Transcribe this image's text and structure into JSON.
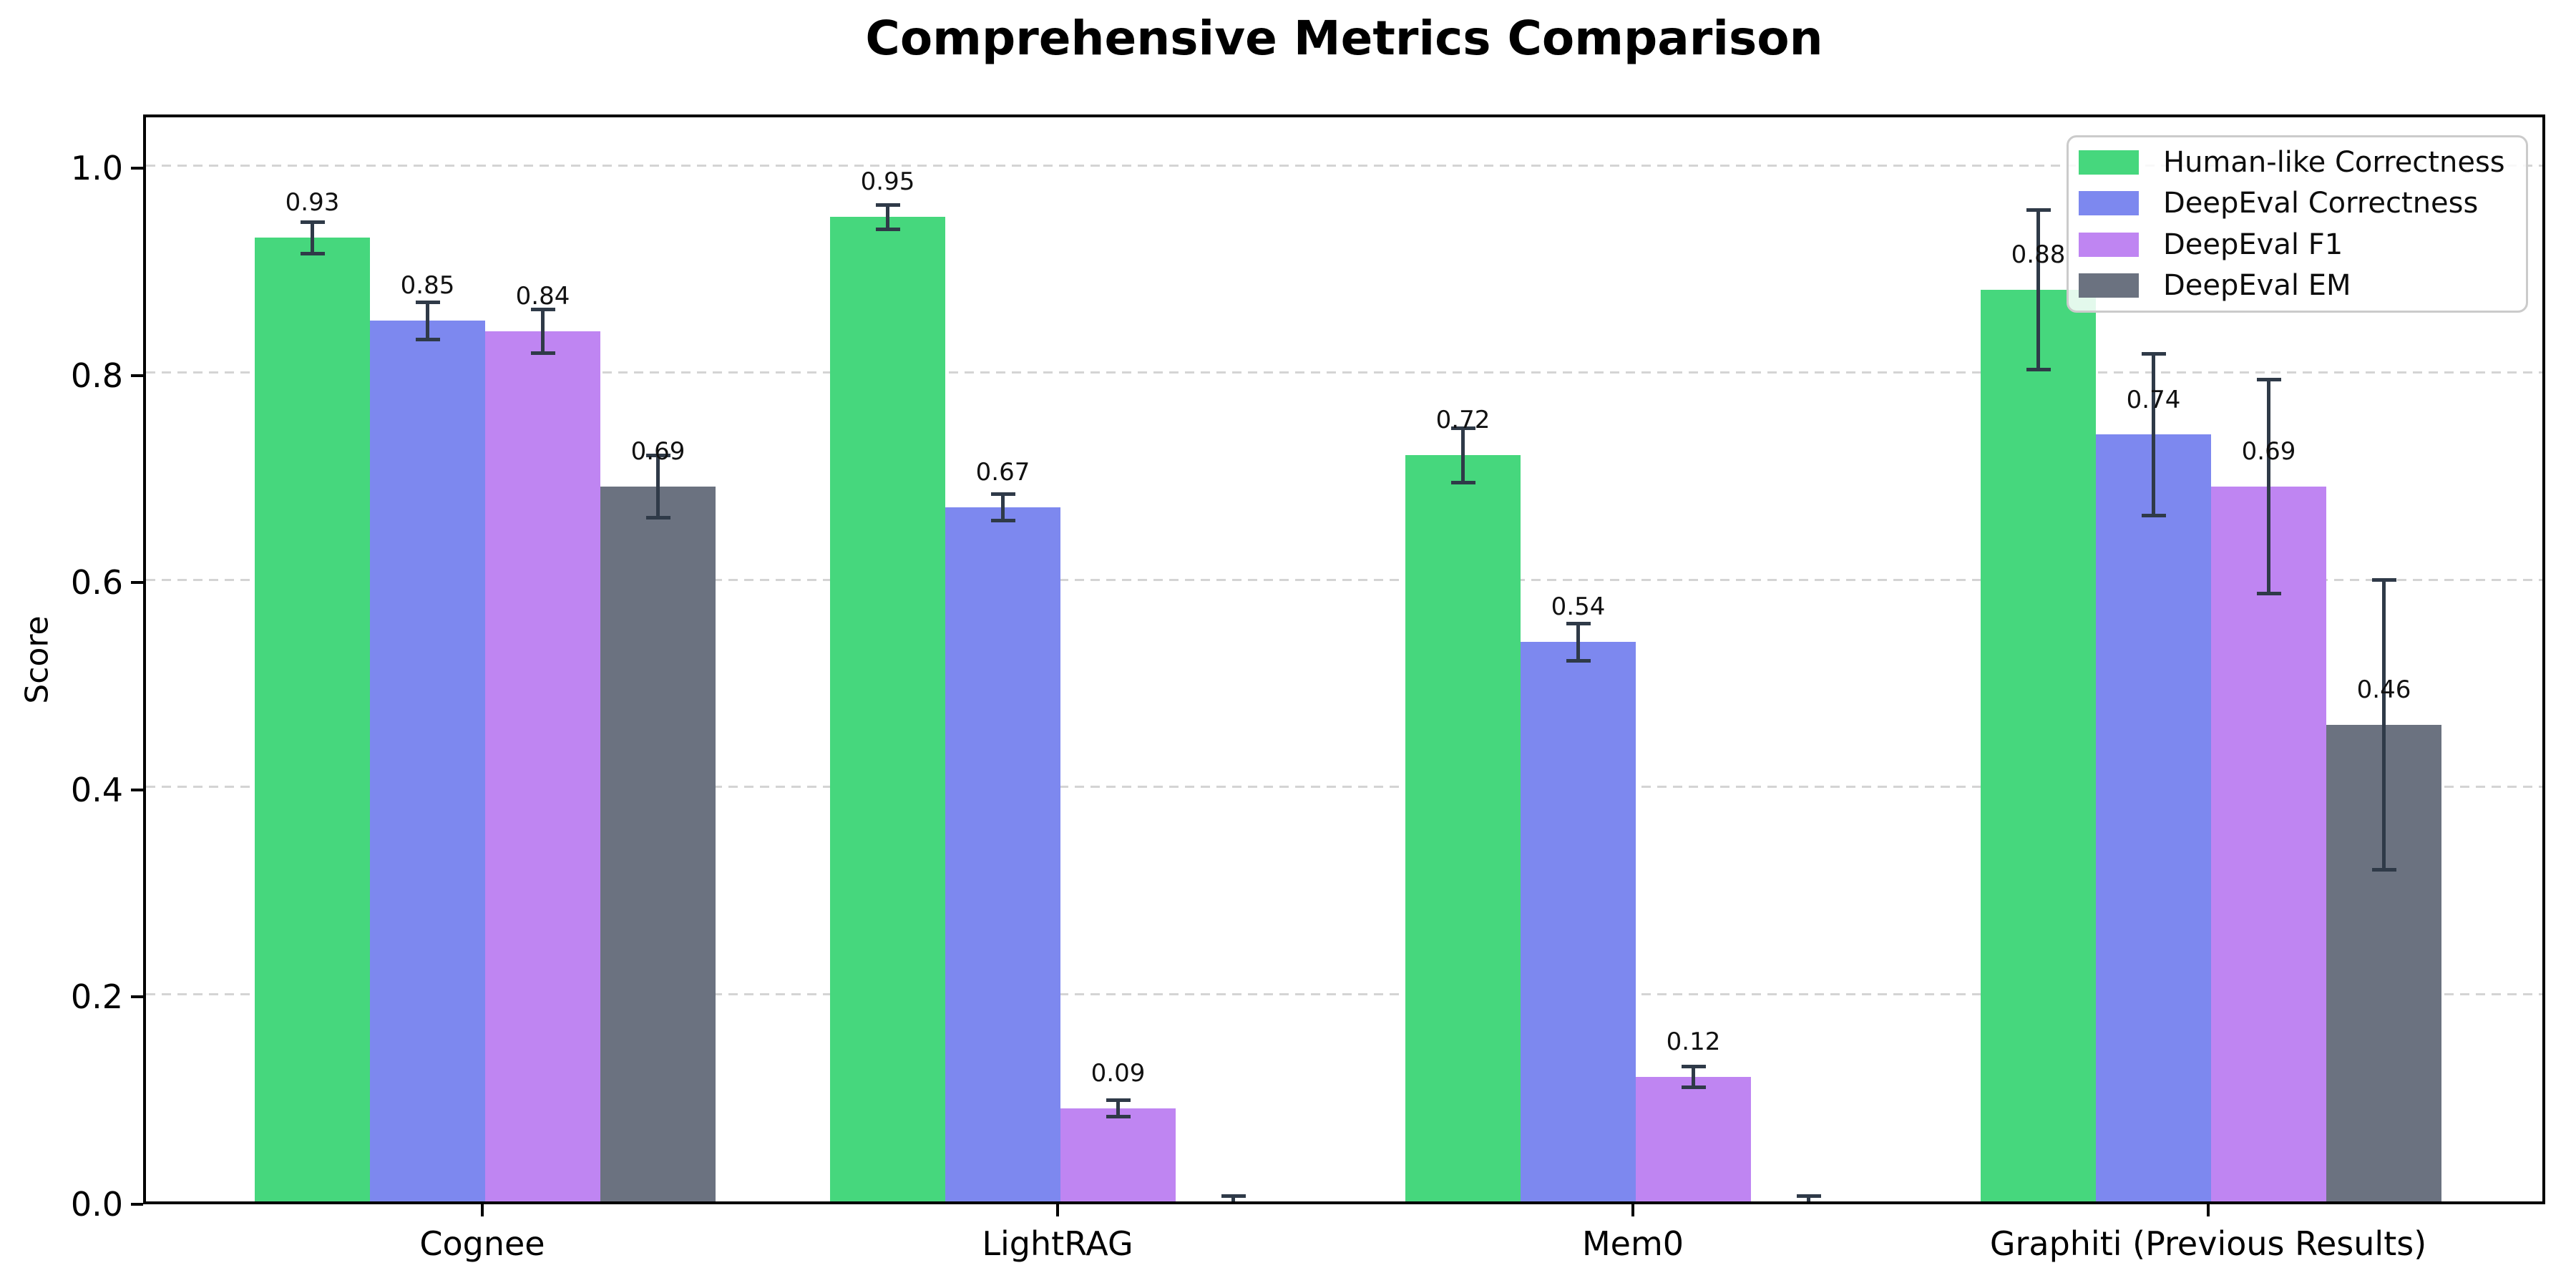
{
  "chart_data": {
    "type": "bar",
    "title": "Comprehensive Metrics Comparison",
    "ylabel": "Score",
    "xlabel": "",
    "categories": [
      "Cognee",
      "LightRAG",
      "Mem0",
      "Graphiti (Previous Results)"
    ],
    "series": [
      {
        "name": "Human-like Correctness",
        "color": "#46d77d",
        "values": [
          0.93,
          0.95,
          0.72,
          0.88
        ],
        "errors": [
          0.015,
          0.012,
          0.026,
          0.077
        ],
        "labels": [
          "0.93",
          "0.95",
          "0.72",
          "0.88"
        ]
      },
      {
        "name": "DeepEval Correctness",
        "color": "#7d88ef",
        "values": [
          0.85,
          0.67,
          0.54,
          0.74
        ],
        "errors": [
          0.018,
          0.013,
          0.018,
          0.078
        ],
        "labels": [
          "0.85",
          "0.67",
          "0.54",
          "0.74"
        ]
      },
      {
        "name": "DeepEval F1",
        "color": "#bf85f2",
        "values": [
          0.84,
          0.09,
          0.12,
          0.69
        ],
        "errors": [
          0.021,
          0.008,
          0.01,
          0.103
        ],
        "labels": [
          "0.84",
          "0.09",
          "0.12",
          "0.69"
        ]
      },
      {
        "name": "DeepEval EM",
        "color": "#6b7280",
        "values": [
          0.69,
          0.0,
          0.0,
          0.46
        ],
        "errors": [
          0.03,
          0.005,
          0.005,
          0.14
        ],
        "labels": [
          "0.69",
          "",
          "",
          "0.46"
        ]
      }
    ],
    "ytick_labels": [
      "0.0",
      "0.2",
      "0.4",
      "0.6",
      "0.8",
      "1.0"
    ],
    "ytick_values": [
      0.0,
      0.2,
      0.4,
      0.6,
      0.8,
      1.0
    ],
    "ylim": [
      0,
      1.05
    ],
    "grid": "horizontal-dashed",
    "gridline_color": "#d4d4d4",
    "error_bar_color": "#2f3a48",
    "legend_position": "upper-right"
  }
}
